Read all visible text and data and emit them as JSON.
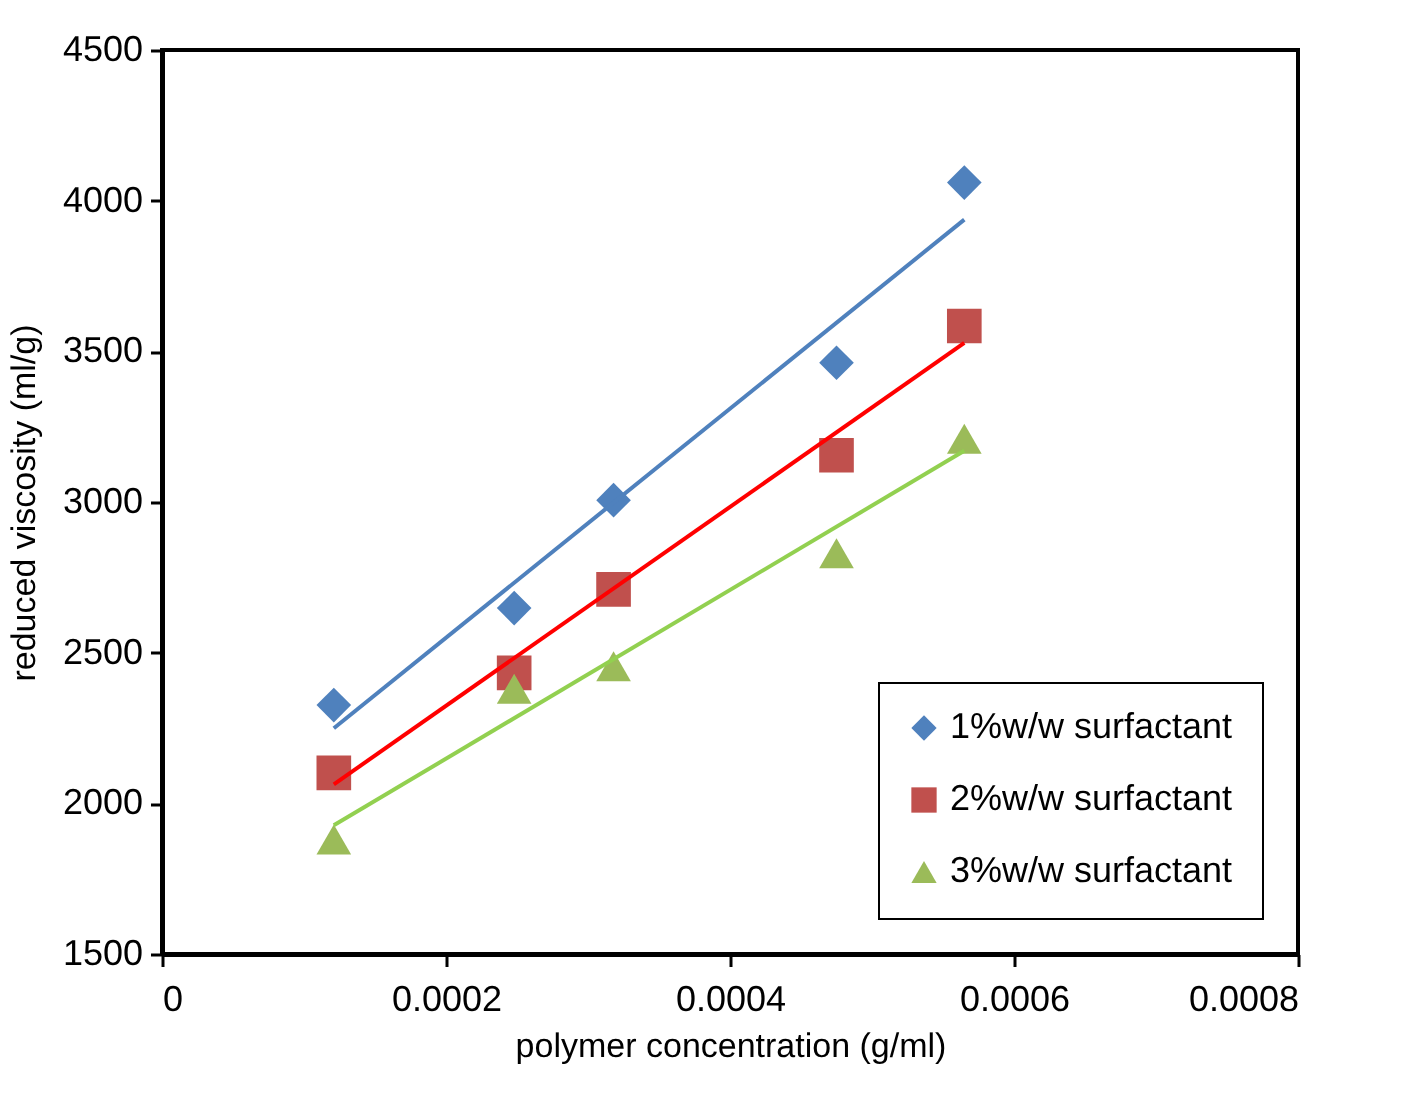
{
  "chart_data": {
    "type": "scatter",
    "xlabel": "polymer concentration (g/ml)",
    "ylabel": "reduced viscosity (ml/g)",
    "xlim": [
      0,
      0.0008
    ],
    "xticks": [
      0,
      0.0002,
      0.0004,
      0.0006,
      0.0008
    ],
    "ylim": [
      1500,
      4500
    ],
    "yticks": [
      1500,
      2000,
      2500,
      3000,
      3500,
      4000,
      4500
    ],
    "grid": false,
    "legend": "bottom right",
    "series": [
      {
        "name": "1%w/w surfactant",
        "color": "#4f81bd",
        "marker": "diamond",
        "x": [
          0.000121,
          0.000248,
          0.000318,
          0.000475,
          0.000565
        ],
        "values": [
          2326,
          2648,
          3006,
          3462,
          4060
        ]
      },
      {
        "name": "2%w/w surfactant",
        "color": "#c0504d",
        "marker": "square",
        "x": [
          0.000121,
          0.000248,
          0.000318,
          0.000475,
          0.000565
        ],
        "values": [
          2101,
          2433,
          2710,
          3155,
          3584
        ]
      },
      {
        "name": "3%w/w surfactant",
        "color": "#9bbb59",
        "marker": "triangle",
        "x": [
          0.000121,
          0.000248,
          0.000318,
          0.000475,
          0.000565
        ],
        "values": [
          1880,
          2380,
          2455,
          2830,
          3210
        ]
      },
      {
        "type": "line",
        "color": "#4f81bd",
        "x": [
          0.000121,
          0.000565
        ],
        "values": [
          2249,
          3937
        ]
      },
      {
        "type": "line",
        "color": "#ff0000",
        "x": [
          0.000121,
          0.000565
        ],
        "values": [
          2063,
          3528
        ]
      },
      {
        "type": "line",
        "color": "#92d050",
        "x": [
          0.000121,
          0.000565
        ],
        "values": [
          1927,
          3170
        ]
      }
    ]
  }
}
